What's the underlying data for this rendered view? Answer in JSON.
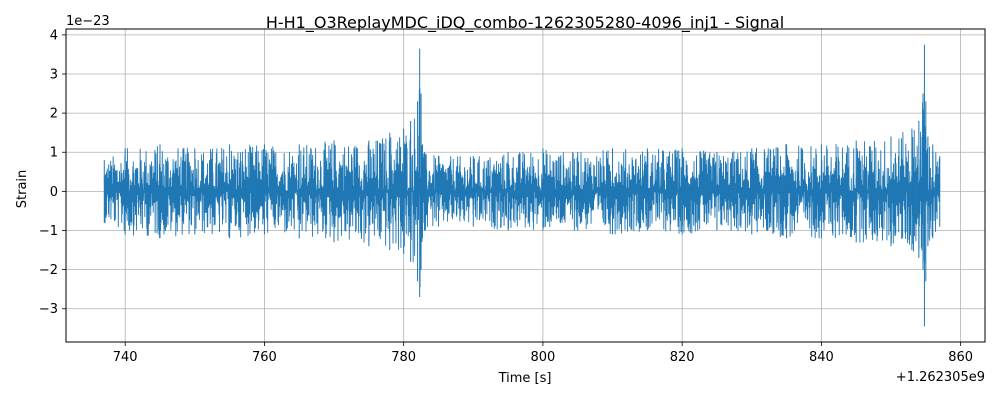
{
  "chart_data": {
    "type": "line",
    "title": "H-H1_O3ReplayMDC_iDQ_combo-1262305280-4096_inj1 - Signal",
    "xlabel": "Time [s]",
    "ylabel": "Strain",
    "x_offset_label": "+1.262305e9",
    "y_scale_label": "1e−23",
    "xlim": [
      731.5,
      863.5
    ],
    "ylim": [
      -3.85,
      4.15
    ],
    "x_ticks": [
      740,
      760,
      780,
      800,
      820,
      840,
      860
    ],
    "x_tick_labels": [
      "740",
      "760",
      "780",
      "800",
      "820",
      "840",
      "860"
    ],
    "y_ticks": [
      -3,
      -2,
      -1,
      0,
      1,
      2,
      3,
      4
    ],
    "y_tick_labels": [
      "−3",
      "−2",
      "−1",
      "0",
      "1",
      "2",
      "3",
      "4"
    ],
    "grid": true,
    "series": [
      {
        "color": "#1f77b4",
        "x": [
          737,
          740,
          745,
          750,
          755,
          760,
          765,
          770,
          775,
          778,
          780,
          781,
          782,
          782.3,
          782.5,
          782.7,
          783,
          785,
          790,
          795,
          800,
          805,
          810,
          815,
          820,
          825,
          830,
          835,
          840,
          845,
          850,
          853,
          854,
          854.6,
          854.8,
          855,
          855.3,
          856,
          857
        ],
        "envelope_upper": [
          0.8,
          1.1,
          1.2,
          1.1,
          1.2,
          1.2,
          1.2,
          1.3,
          1.3,
          1.5,
          1.6,
          1.8,
          2.3,
          3.65,
          2.5,
          1.2,
          1.0,
          0.9,
          0.9,
          1.0,
          1.1,
          1.0,
          1.1,
          1.1,
          1.1,
          1.0,
          1.1,
          1.2,
          1.2,
          1.3,
          1.4,
          1.6,
          1.8,
          2.5,
          3.75,
          2.3,
          1.4,
          1.2,
          0.9
        ],
        "envelope_lower": [
          -0.8,
          -1.1,
          -1.2,
          -1.1,
          -1.2,
          -1.1,
          -1.2,
          -1.3,
          -1.4,
          -1.5,
          -1.6,
          -1.8,
          -2.3,
          -2.7,
          -2.0,
          -1.2,
          -1.0,
          -0.9,
          -0.9,
          -1.0,
          -1.0,
          -1.0,
          -1.1,
          -1.0,
          -1.1,
          -1.0,
          -1.1,
          -1.2,
          -1.2,
          -1.3,
          -1.4,
          -1.5,
          -1.7,
          -2.0,
          -3.45,
          -2.3,
          -1.4,
          -1.2,
          -0.9
        ]
      }
    ]
  }
}
